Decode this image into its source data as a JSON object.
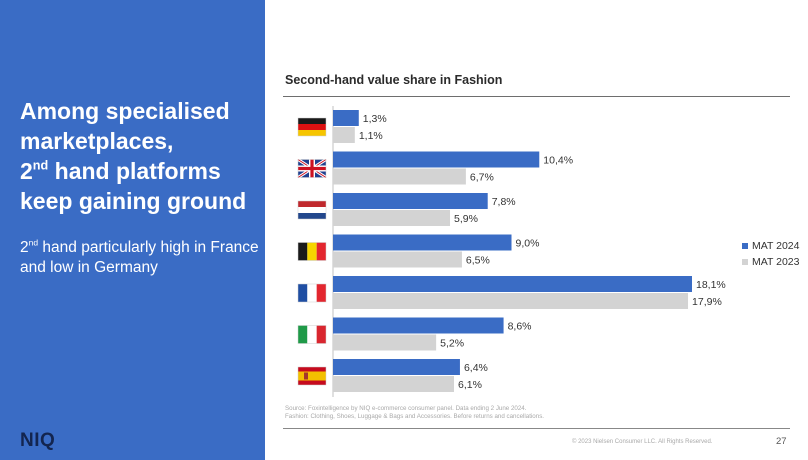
{
  "slide": {
    "headline": {
      "line1": "Among specialised",
      "line2": "marketplaces,",
      "line3_num": "2",
      "line3_sup": "nd",
      "line3_rest": " hand platforms",
      "line4": "keep gaining ground"
    },
    "subhead": {
      "num": "2",
      "sup": "nd",
      "rest": " hand particularly high in France and low in Germany"
    },
    "logo": "NIQ",
    "footnote_line1": "Source: Foxintelligence by NIQ e-commerce consumer panel. Data ending 2 June 2024.",
    "footnote_line2": "Fashion: Clothing, Shoes, Luggage & Bags and Accessories. Before returns and cancellations.",
    "copyright": "© 2023 Nielsen Consumer LLC. All Rights Reserved.",
    "page_number": "27"
  },
  "colors": {
    "panel": "#3a6cc5",
    "bar_2024": "#3a6cc5",
    "bar_2023": "#d3d3d3",
    "logo": "#13254f"
  },
  "chart_data": {
    "type": "bar",
    "orientation": "horizontal",
    "title": "Second-hand value share in Fashion",
    "categories": [
      "Germany",
      "United Kingdom",
      "Netherlands",
      "Belgium",
      "France",
      "Italy",
      "Spain"
    ],
    "category_icons": [
      "flag-germany-icon",
      "flag-uk-icon",
      "flag-netherlands-icon",
      "flag-belgium-icon",
      "flag-france-icon",
      "flag-italy-icon",
      "flag-spain-icon"
    ],
    "xlim": [
      0,
      18.1
    ],
    "grid": false,
    "legend_position": "right",
    "series": [
      {
        "name": "MAT 2024",
        "color": "#3a6cc5",
        "values": [
          1.3,
          10.4,
          7.8,
          9.0,
          18.1,
          8.6,
          6.4
        ],
        "labels": [
          "1,3%",
          "10,4%",
          "7,8%",
          "9,0%",
          "18,1%",
          "8,6%",
          "6,4%"
        ]
      },
      {
        "name": "MAT 2023",
        "color": "#d3d3d3",
        "values": [
          1.1,
          6.7,
          5.9,
          6.5,
          17.9,
          5.2,
          6.1
        ],
        "labels": [
          "1,1%",
          "6,7%",
          "5,9%",
          "6,5%",
          "17,9%",
          "5,2%",
          "6,1%"
        ]
      }
    ]
  }
}
